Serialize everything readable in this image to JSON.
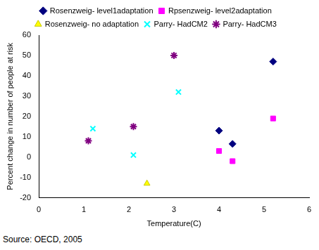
{
  "chart_data": {
    "type": "scatter",
    "x_label": "Temperature(C)",
    "y_label": "Percent change in number of people at risk",
    "annotation": "Source: OECD, 2005",
    "series": [
      {
        "name": "Rosenzweig- level1adaptation",
        "color": "#000080",
        "marker": "diamond",
        "x": [
          4.0,
          4.3,
          5.2
        ],
        "values": [
          13,
          6.5,
          47
        ]
      },
      {
        "name": "Rpsenzweig- level2adaptation",
        "color": "#ff00ff",
        "marker": "square",
        "x": [
          4.0,
          4.3,
          5.2
        ],
        "values": [
          3,
          -2,
          19
        ]
      },
      {
        "name": "Rosenzweig- no adaptation",
        "color": "#ffff00",
        "marker": "triangle",
        "x": [
          2.4
        ],
        "values": [
          -13
        ]
      },
      {
        "name": "Parry- HadCM2",
        "color": "#00ffff",
        "marker": "x",
        "x": [
          1.2,
          2.1,
          3.1
        ],
        "values": [
          14,
          1,
          32
        ]
      },
      {
        "name": "Parry- HadCM3",
        "color": "#800080",
        "marker": "star",
        "x": [
          1.1,
          2.1,
          3.0
        ],
        "values": [
          8,
          15,
          50
        ]
      }
    ],
    "xlim": [
      0,
      6
    ],
    "xticks": [
      0,
      1,
      2,
      3,
      4,
      5,
      6
    ],
    "ylim": [
      -20,
      60
    ],
    "yticks": [
      -20,
      -10,
      0,
      10,
      20,
      30,
      40,
      50,
      60
    ],
    "grid": false,
    "legend": "top"
  }
}
